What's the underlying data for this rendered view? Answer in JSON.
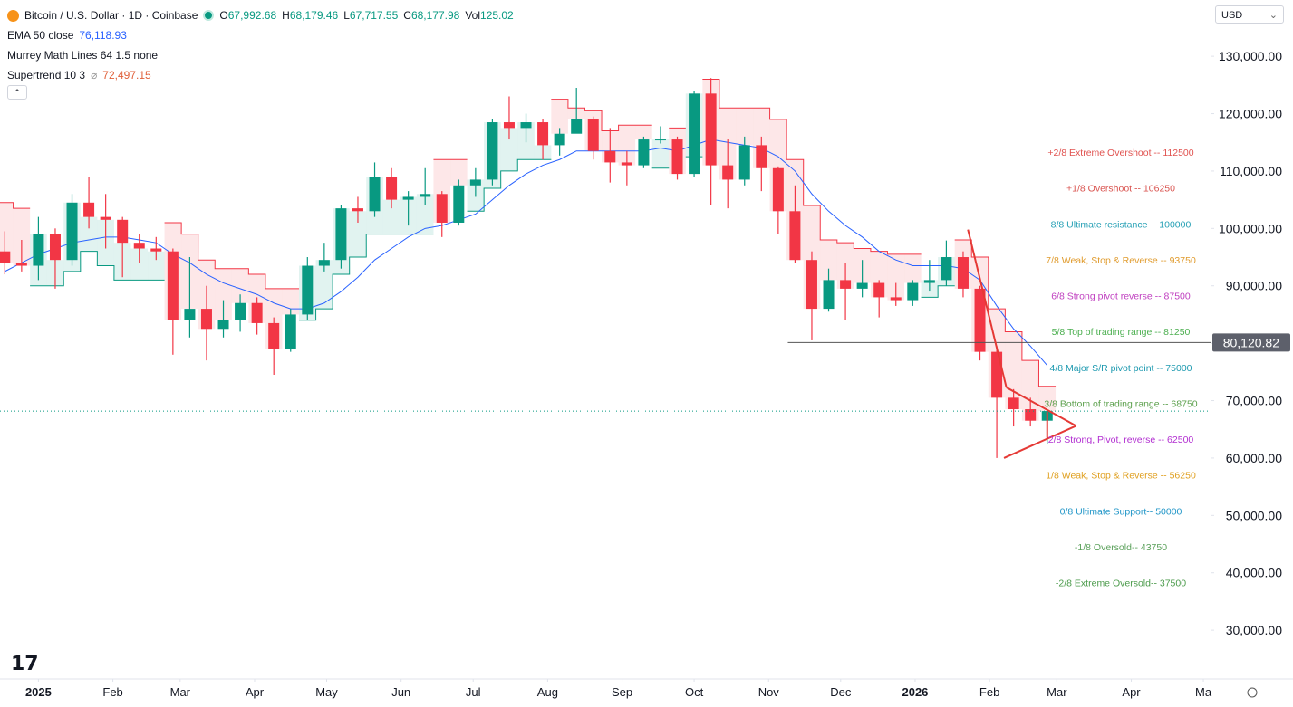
{
  "header": {
    "title": "Bitcoin / U.S. Dollar · 1D · Coinbase",
    "ohlc": [
      {
        "label": "O",
        "value": "67,992.68"
      },
      {
        "label": "H",
        "value": "68,179.46"
      },
      {
        "label": "L",
        "value": "67,717.55"
      },
      {
        "label": "C",
        "value": "68,177.98"
      },
      {
        "label": "Vol",
        "value": "125.02"
      }
    ],
    "ema": {
      "label": "EMA 50 close",
      "value": "76,118.93"
    },
    "murrey": "Murrey Math Lines 64 1.5 none",
    "supertrend": {
      "label": "Supertrend 10 3",
      "value": "72,497.15"
    },
    "currency": "USD"
  },
  "chart_data": {
    "type": "candlestick",
    "x": [
      -14,
      -7,
      0,
      7,
      14,
      21,
      28,
      35,
      42,
      49,
      56,
      63,
      70,
      77,
      84,
      91,
      98,
      105,
      112,
      119,
      126,
      133,
      140,
      147,
      154,
      161,
      168,
      175,
      182,
      189,
      196,
      203,
      210,
      217,
      224,
      231,
      238,
      245,
      252,
      259,
      266,
      273,
      280,
      287,
      294,
      301,
      308,
      315,
      322,
      329,
      336,
      343,
      350,
      357,
      364,
      371,
      378,
      385,
      392,
      399,
      406,
      413,
      420
    ],
    "open": [
      96000,
      94000,
      93500,
      99000,
      94500,
      104500,
      102000,
      101500,
      97500,
      96500,
      96000,
      84000,
      86000,
      82500,
      84000,
      87000,
      83500,
      79000,
      85000,
      93500,
      94500,
      103500,
      103000,
      109000,
      105000,
      105500,
      106000,
      101000,
      107500,
      108500,
      118500,
      117500,
      118500,
      114500,
      116500,
      119000,
      113500,
      111500,
      111000,
      115500,
      115500,
      109500,
      123500,
      111000,
      108500,
      114500,
      110500,
      103000,
      94500,
      86000,
      91000,
      89500,
      90500,
      88000,
      87500,
      90500,
      91000,
      95000,
      89500,
      78500,
      70500,
      68500,
      66500
    ],
    "high": [
      99500,
      98000,
      102000,
      100000,
      106000,
      109000,
      106000,
      102000,
      99000,
      98500,
      96500,
      95000,
      90000,
      87500,
      88500,
      88000,
      84500,
      86000,
      95000,
      97500,
      104000,
      105500,
      111500,
      110500,
      106500,
      110500,
      106500,
      108500,
      110500,
      119000,
      123000,
      120000,
      119000,
      117500,
      124500,
      119500,
      117500,
      113500,
      116000,
      117800,
      116000,
      124000,
      126200,
      115500,
      116000,
      116000,
      110800,
      107500,
      96000,
      93000,
      94000,
      94500,
      91000,
      90500,
      91000,
      94500,
      97900,
      96000,
      90000,
      79500,
      72000,
      70500,
      68500
    ],
    "low": [
      92000,
      92500,
      91000,
      89500,
      93500,
      100000,
      96500,
      91500,
      94000,
      94500,
      78000,
      81000,
      77000,
      81000,
      82000,
      81500,
      74500,
      78500,
      84000,
      92500,
      93000,
      101000,
      102000,
      103500,
      100500,
      104000,
      98500,
      100500,
      105500,
      107500,
      115500,
      115000,
      112000,
      112700,
      117000,
      112000,
      108000,
      107500,
      110500,
      114800,
      108500,
      109000,
      104000,
      103500,
      107500,
      106500,
      99000,
      94000,
      80500,
      85500,
      84000,
      88000,
      84500,
      86500,
      86500,
      89000,
      90000,
      88000,
      77000,
      60000,
      65500,
      65500,
      62500
    ],
    "close": [
      94000,
      93500,
      99000,
      94500,
      104500,
      102000,
      101500,
      97500,
      96500,
      96000,
      84000,
      86000,
      82500,
      84000,
      87000,
      83500,
      79000,
      85000,
      93500,
      94500,
      103500,
      103000,
      109000,
      105000,
      105500,
      106000,
      101000,
      107500,
      108500,
      118500,
      117500,
      118500,
      114500,
      116500,
      119000,
      113500,
      111500,
      111000,
      115500,
      115500,
      109500,
      123500,
      111000,
      108500,
      114500,
      110500,
      103000,
      94500,
      86000,
      91000,
      89500,
      90500,
      88000,
      87500,
      90500,
      91000,
      95000,
      89500,
      78500,
      70500,
      68500,
      66500,
      68178
    ],
    "up_color": "#089981",
    "down_color": "#f23645",
    "ema": {
      "color": "#2962ff",
      "values": [
        92500,
        94000,
        95500,
        96500,
        97500,
        98000,
        98500,
        98500,
        98000,
        97500,
        95500,
        94000,
        92000,
        90500,
        89500,
        88500,
        87000,
        86000,
        86000,
        87000,
        89000,
        91500,
        94500,
        96500,
        98500,
        100000,
        100500,
        101500,
        102500,
        105000,
        107500,
        109500,
        111000,
        112000,
        113500,
        113500,
        113500,
        113500,
        113500,
        114000,
        113500,
        114500,
        115500,
        115000,
        114500,
        114000,
        112500,
        110000,
        106000,
        103000,
        100500,
        98500,
        96000,
        94500,
        93500,
        93500,
        93500,
        93000,
        91000,
        86500,
        82500,
        79500,
        76119
      ]
    },
    "supertrend": {
      "down_color": "#f23645",
      "up_color": "#089981",
      "down": [
        104500,
        103500,
        null,
        null,
        null,
        null,
        null,
        null,
        null,
        null,
        101000,
        99000,
        94500,
        93000,
        93000,
        92000,
        89500,
        89500,
        null,
        null,
        null,
        null,
        null,
        null,
        null,
        null,
        112000,
        112000,
        null,
        null,
        null,
        null,
        null,
        122500,
        121000,
        120500,
        117000,
        118000,
        118000,
        null,
        117500,
        null,
        126000,
        121000,
        121000,
        121000,
        119000,
        112000,
        104000,
        98000,
        97500,
        96500,
        96000,
        95500,
        95500,
        null,
        null,
        98000,
        95000,
        86000,
        82000,
        77000,
        72497.15
      ],
      "up": [
        null,
        null,
        90000,
        90000,
        92500,
        96000,
        93500,
        91000,
        91000,
        91000,
        null,
        null,
        null,
        null,
        null,
        null,
        null,
        null,
        84000,
        86000,
        92000,
        95000,
        99000,
        99000,
        99000,
        99000,
        null,
        null,
        103000,
        107000,
        110000,
        112000,
        112000,
        null,
        null,
        null,
        null,
        null,
        null,
        110500,
        null,
        112500,
        null,
        null,
        null,
        null,
        null,
        null,
        null,
        null,
        null,
        null,
        null,
        null,
        null,
        88000,
        90000,
        null,
        null,
        null,
        null,
        null,
        null
      ]
    },
    "xlim": [
      -16,
      488
    ],
    "ylim": [
      21500,
      139800
    ],
    "xticks": [
      {
        "value": 0,
        "label": "2025"
      },
      {
        "value": 31,
        "label": "Feb"
      },
      {
        "value": 59,
        "label": "Mar"
      },
      {
        "value": 90,
        "label": "Apr"
      },
      {
        "value": 120,
        "label": "May"
      },
      {
        "value": 151,
        "label": "Jun"
      },
      {
        "value": 181,
        "label": "Jul"
      },
      {
        "value": 212,
        "label": "Aug"
      },
      {
        "value": 243,
        "label": "Sep"
      },
      {
        "value": 273,
        "label": "Oct"
      },
      {
        "value": 304,
        "label": "Nov"
      },
      {
        "value": 334,
        "label": "Dec"
      },
      {
        "value": 365,
        "label": "2026"
      },
      {
        "value": 396,
        "label": "Feb"
      },
      {
        "value": 424,
        "label": "Mar"
      },
      {
        "value": 455,
        "label": "Apr"
      },
      {
        "value": 485,
        "label": "Ma"
      }
    ],
    "yticks": [
      {
        "value": 30000,
        "label": "30,000.00"
      },
      {
        "value": 40000,
        "label": "40,000.00"
      },
      {
        "value": 50000,
        "label": "50,000.00"
      },
      {
        "value": 60000,
        "label": "60,000.00"
      },
      {
        "value": 70000,
        "label": "70,000.00"
      },
      {
        "value": 80000,
        "label": "80,000.00"
      },
      {
        "value": 90000,
        "label": "90,000.00"
      },
      {
        "value": 100000,
        "label": "100,000.00"
      },
      {
        "value": 110000,
        "label": "110,000.00"
      },
      {
        "value": 120000,
        "label": "120,000.00"
      },
      {
        "value": 130000,
        "label": "130,000.00"
      }
    ],
    "murrey_lines": [
      {
        "label": "+2/8 Extreme Overshoot --  112500",
        "value": 112500,
        "color": "#e0524f"
      },
      {
        "label": "+1/8 Overshoot --  106250",
        "value": 106250,
        "color": "#d9534f"
      },
      {
        "label": "8/8 Ultimate resistance --  100000",
        "value": 100000,
        "color": "#26a0b5"
      },
      {
        "label": "7/8 Weak, Stop & Reverse --  93750",
        "value": 93750,
        "color": "#e09b2d"
      },
      {
        "label": "6/8 Strong pivot reverse --  87500",
        "value": 87500,
        "color": "#c040c0"
      },
      {
        "label": "5/8 Top of trading range --  81250",
        "value": 81250,
        "color": "#4caf50"
      },
      {
        "label": "4/8 Major S/R pivot point --  75000",
        "value": 75000,
        "color": "#1e9ab0"
      },
      {
        "label": "3/8 Bottom of trading range --  68750",
        "value": 68750,
        "color": "#5a9f4a"
      },
      {
        "label": "2/8 Strong, Pivot, reverse --  62500",
        "value": 62500,
        "color": "#b22fd1"
      },
      {
        "label": "1/8 Weak, Stop & Reverse --  56250",
        "value": 56250,
        "color": "#e0a020"
      },
      {
        "label": "0/8 Ultimate Support--  50000",
        "value": 50000,
        "color": "#2196c8"
      },
      {
        "label": "-1/8 Oversold--  43750",
        "value": 43750,
        "color": "#5aa05a"
      },
      {
        "label": "-2/8 Extreme Oversold--  37500",
        "value": 37500,
        "color": "#4a9a4a"
      }
    ],
    "horizontal_line": {
      "value": 80120.82,
      "label": "80,120.82",
      "from_x": 312
    },
    "last_price": 68178,
    "trendlines": {
      "color": "#e53935",
      "lines": [
        [
          [
            387,
            99800
          ],
          [
            403,
            72300
          ]
        ],
        [
          [
            403,
            72300
          ],
          [
            432,
            65600
          ]
        ],
        [
          [
            402,
            60000
          ],
          [
            432,
            65600
          ]
        ],
        [
          [
            420,
            63500
          ],
          [
            420,
            68000
          ]
        ]
      ]
    }
  }
}
